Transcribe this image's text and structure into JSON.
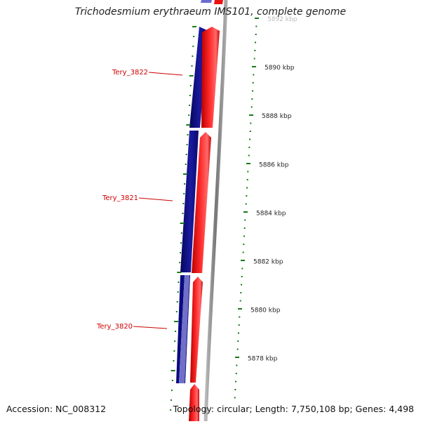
{
  "header": {
    "title": "Trichodesmium erythraeum IMS101, complete genome"
  },
  "footer": {
    "accession": "Accession: NC_008312",
    "summary": "Topology: circular; Length: 7,750,108 bp; Genes: 4,498"
  },
  "scale": {
    "labels": [
      "5892 kbp",
      "5890 kbp",
      "5888 kbp",
      "5886 kbp",
      "5884 kbp",
      "5882 kbp",
      "5880 kbp",
      "5878 kbp"
    ]
  },
  "genes": [
    {
      "label": "Tery_3822"
    },
    {
      "label": "Tery_3821"
    },
    {
      "label": "Tery_3820"
    }
  ],
  "colors": {
    "reverse_strand": "#0a0a80",
    "reverse_strand_light": "#6a6ad0",
    "forward_strand": "#ee1111",
    "backbone": "#888888",
    "ticks": "#1a7a1a",
    "gene_label": "#cc0000"
  }
}
